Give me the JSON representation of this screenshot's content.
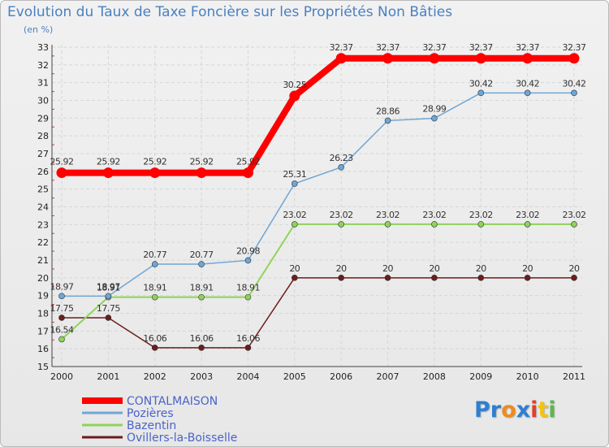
{
  "chart_data": {
    "type": "line",
    "title": "Evolution du Taux de Taxe Foncière sur les Propriétés Non Bâties",
    "subtitle": "(en %)",
    "x": [
      "2000",
      "2001",
      "2002",
      "2003",
      "2004",
      "2005",
      "2006",
      "2007",
      "2008",
      "2009",
      "2010",
      "2011"
    ],
    "ylim": [
      15,
      33
    ],
    "yticks": [
      15,
      16,
      17,
      18,
      19,
      20,
      21,
      22,
      23,
      24,
      25,
      26,
      27,
      28,
      29,
      30,
      31,
      32,
      33
    ],
    "series": [
      {
        "name": "Ovillers-la-Boisselle",
        "color": "#6b1d1d",
        "width": 1.5,
        "values": [
          17.75,
          17.75,
          16.06,
          16.06,
          16.06,
          20,
          20,
          20,
          20,
          20,
          20,
          20
        ],
        "labels": [
          "17.75",
          "17.75",
          "16.06",
          "16.06",
          "16.06",
          "20",
          "20",
          "20",
          "20",
          "20",
          "20",
          "20"
        ]
      },
      {
        "name": "Bazentin",
        "color": "#8fd35a",
        "width": 2,
        "values": [
          16.54,
          18.91,
          18.91,
          18.91,
          18.91,
          23.02,
          23.02,
          23.02,
          23.02,
          23.02,
          23.02,
          23.02
        ],
        "labels": [
          "16.54",
          "18.91",
          "18.91",
          "18.91",
          "18.91",
          "23.02",
          "23.02",
          "23.02",
          "23.02",
          "23.02",
          "23.02",
          "23.02"
        ]
      },
      {
        "name": "Pozières",
        "color": "#6fa6d6",
        "width": 1.5,
        "values": [
          18.97,
          18.97,
          20.77,
          20.77,
          20.98,
          25.31,
          26.23,
          28.86,
          28.99,
          30.42,
          30.42,
          30.42
        ],
        "labels": [
          "18.97",
          "18.97",
          "20.77",
          "20.77",
          "20.98",
          "25.31",
          "26.23",
          "28.86",
          "28.99",
          "30.42",
          "30.42",
          "30.42"
        ]
      },
      {
        "name": "CONTALMAISON",
        "color": "#ff0000",
        "width": 8,
        "values": [
          25.92,
          25.92,
          25.92,
          25.92,
          25.92,
          30.25,
          32.37,
          32.37,
          32.37,
          32.37,
          32.37,
          32.37
        ],
        "labels": [
          "25.92",
          "25.92",
          "25.92",
          "25.92",
          "25.92",
          "30.25",
          "32.37",
          "32.37",
          "32.37",
          "32.37",
          "32.37",
          "32.37"
        ]
      }
    ],
    "legend": [
      "CONTALMAISON",
      "Pozières",
      "Bazentin",
      "Ovillers-la-Boisselle"
    ]
  },
  "logo": {
    "text": "Proxiti"
  }
}
